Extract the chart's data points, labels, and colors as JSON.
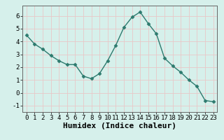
{
  "x": [
    0,
    1,
    2,
    3,
    4,
    5,
    6,
    7,
    8,
    9,
    10,
    11,
    12,
    13,
    14,
    15,
    16,
    17,
    18,
    19,
    20,
    21,
    22,
    23
  ],
  "y": [
    4.5,
    3.8,
    3.4,
    2.9,
    2.5,
    2.2,
    2.2,
    1.3,
    1.1,
    1.5,
    2.5,
    3.7,
    5.1,
    5.9,
    6.3,
    5.4,
    4.6,
    2.7,
    2.1,
    1.6,
    1.0,
    0.5,
    -0.6,
    -0.7
  ],
  "xlabel": "Humidex (Indice chaleur)",
  "line_color": "#2d7a6e",
  "marker": "D",
  "marker_size": 2.5,
  "bg_color": "#d6f0eb",
  "grid_color": "#e8c8c8",
  "ylim": [
    -1.5,
    6.8
  ],
  "xlim": [
    -0.5,
    23.5
  ],
  "yticks": [
    -1,
    0,
    1,
    2,
    3,
    4,
    5,
    6
  ],
  "xticks": [
    0,
    1,
    2,
    3,
    4,
    5,
    6,
    7,
    8,
    9,
    10,
    11,
    12,
    13,
    14,
    15,
    16,
    17,
    18,
    19,
    20,
    21,
    22,
    23
  ],
  "tick_label_fontsize": 6.5,
  "xlabel_fontsize": 8,
  "spine_color": "#666666"
}
